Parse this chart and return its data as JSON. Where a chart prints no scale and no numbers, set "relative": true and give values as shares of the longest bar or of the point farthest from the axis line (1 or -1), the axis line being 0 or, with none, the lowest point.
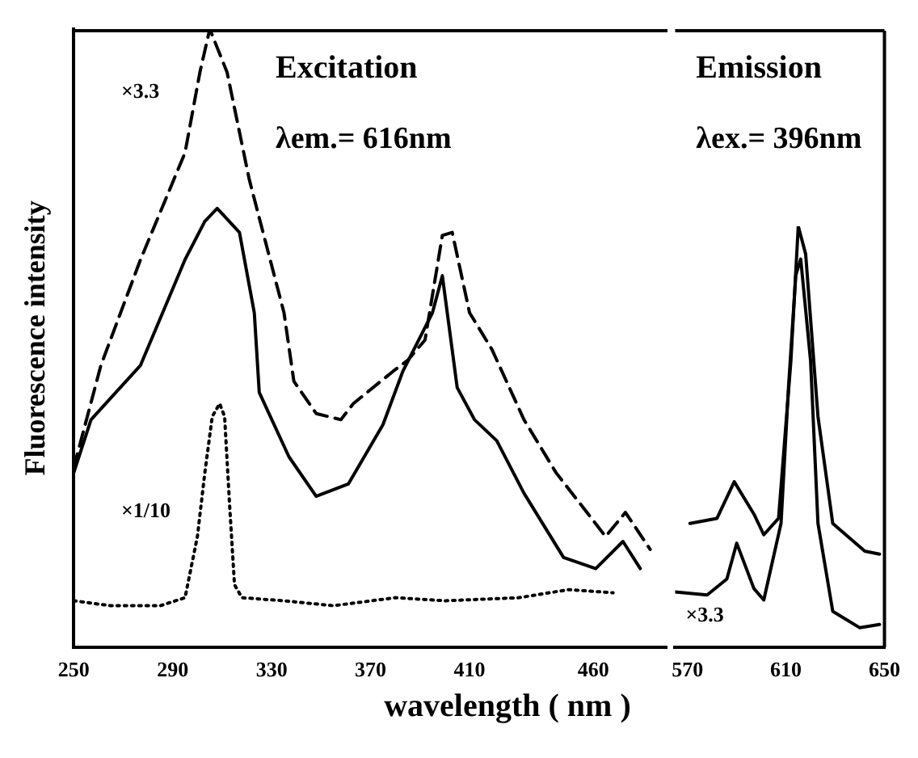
{
  "chart_data": [
    {
      "type": "line",
      "title": "Excitation",
      "subtitle": "λem.= 616nm",
      "ylabel": "Fluorescence intensity",
      "relative": true,
      "xlim": [
        250,
        490
      ],
      "xticks": [
        250,
        290,
        330,
        370,
        410,
        460
      ],
      "annotations": [
        "×3.3",
        "×1/10"
      ],
      "series": [
        {
          "color": "#000000",
          "line_style": "dashed",
          "x": [
            250,
            261,
            277,
            295,
            301,
            305,
            312,
            321,
            335,
            339,
            348,
            358,
            363,
            379,
            385,
            392,
            399,
            403,
            410,
            419,
            432,
            445,
            465,
            473,
            483
          ],
          "values": [
            0.29,
            0.456,
            0.627,
            0.8,
            0.93,
            1,
            0.93,
            0.756,
            0.541,
            0.43,
            0.378,
            0.368,
            0.394,
            0.446,
            0.464,
            0.497,
            0.666,
            0.671,
            0.541,
            0.482,
            0.368,
            0.282,
            0.179,
            0.218,
            0.158
          ]
        },
        {
          "color": "#000000",
          "line_style": "solid",
          "x": [
            250,
            257,
            277,
            295,
            303,
            308,
            317,
            323,
            325,
            337,
            348,
            361,
            375,
            383,
            395,
            399,
            405,
            412,
            421,
            432,
            448,
            461,
            472,
            479
          ],
          "values": [
            0.282,
            0.368,
            0.456,
            0.627,
            0.689,
            0.71,
            0.671,
            0.541,
            0.412,
            0.308,
            0.244,
            0.264,
            0.36,
            0.446,
            0.541,
            0.601,
            0.42,
            0.368,
            0.334,
            0.249,
            0.145,
            0.127,
            0.171,
            0.127
          ]
        },
        {
          "color": "#000000",
          "line_style": "dotted",
          "x": [
            250,
            265,
            285,
            295,
            300,
            303,
            306,
            309,
            311,
            313,
            315,
            318,
            335,
            355,
            380,
            400,
            430,
            450,
            468
          ],
          "values": [
            0.075,
            0.067,
            0.067,
            0.08,
            0.179,
            0.282,
            0.373,
            0.394,
            0.373,
            0.231,
            0.101,
            0.08,
            0.075,
            0.067,
            0.08,
            0.075,
            0.08,
            0.093,
            0.088
          ]
        }
      ]
    },
    {
      "type": "line",
      "title": "Emission",
      "subtitle": "λex.= 396nm",
      "xlabel": "wavelength ( nm )",
      "relative": true,
      "xlim": [
        565,
        650
      ],
      "xticks": [
        570,
        610,
        650
      ],
      "annotations": [
        "×3.3"
      ],
      "series": [
        {
          "color": "#000000",
          "line_style": "solid",
          "x": [
            571,
            582,
            589,
            597,
            601,
            607,
            612,
            615,
            618,
            623,
            629,
            642,
            648
          ],
          "values": [
            0.294,
            0.306,
            0.393,
            0.316,
            0.267,
            0.306,
            0.68,
            1,
            0.934,
            0.548,
            0.294,
            0.228,
            0.221
          ]
        },
        {
          "color": "#000000",
          "line_style": "solid",
          "x": [
            565,
            578,
            586,
            590,
            597,
            601,
            608,
            611,
            614,
            616,
            620,
            623,
            629,
            640,
            648
          ],
          "values": [
            0.131,
            0.124,
            0.162,
            0.247,
            0.139,
            0.112,
            0.294,
            0.614,
            0.884,
            0.922,
            0.68,
            0.294,
            0.085,
            0.046,
            0.054
          ]
        }
      ]
    }
  ]
}
